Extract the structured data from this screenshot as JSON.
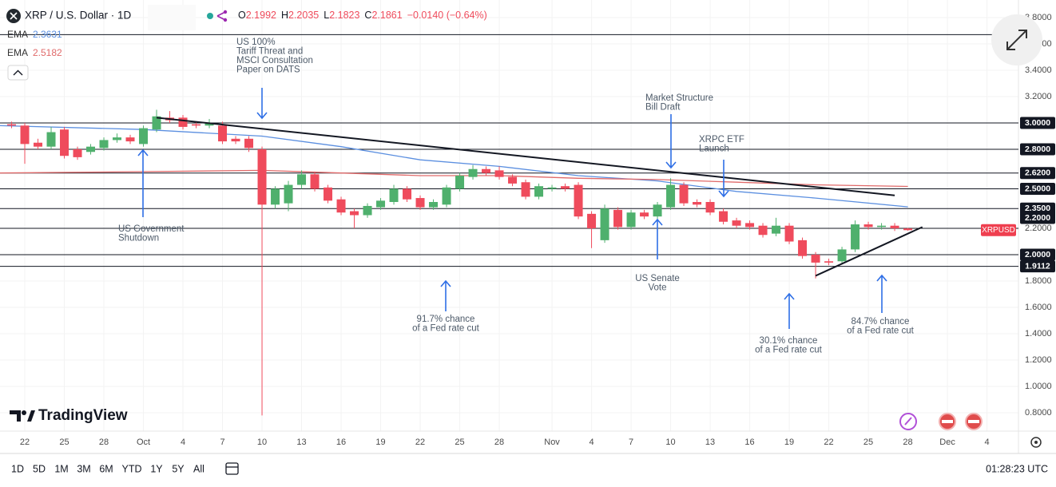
{
  "chart_data": {
    "type": "candlestick",
    "title": "XRP / U.S. Dollar · 1D",
    "ohlc_labels": [
      {
        "key": "O",
        "text": "2.1992"
      },
      {
        "key": "H",
        "text": "2.2035"
      },
      {
        "key": "L",
        "text": "2.1823"
      },
      {
        "key": "C",
        "text": "2.1861"
      }
    ],
    "change": "−0.0140 (−0.64%)",
    "x": [
      -1,
      0,
      1,
      2,
      3,
      4,
      5,
      6,
      7,
      8,
      9,
      10,
      11,
      12,
      13,
      14,
      15,
      16,
      17,
      18,
      19,
      20,
      21,
      22,
      23,
      24,
      25,
      26,
      27,
      28,
      29,
      30,
      31,
      32,
      33,
      34,
      35,
      36,
      37,
      38,
      39,
      40,
      41,
      42,
      43,
      44,
      45,
      46,
      47,
      48,
      49,
      50,
      51,
      52,
      53,
      54,
      55,
      56,
      57,
      58,
      59,
      60,
      61,
      62,
      63,
      64,
      65,
      66,
      67
    ],
    "open": [
      2.99,
      2.98,
      2.85,
      2.82,
      2.95,
      2.8,
      2.78,
      2.81,
      2.87,
      2.89,
      2.84,
      2.95,
      3.04,
      3.04,
      2.99,
      2.98,
      2.98,
      2.88,
      2.88,
      2.8,
      2.38,
      2.39,
      2.53,
      2.61,
      2.51,
      2.42,
      2.33,
      2.3,
      2.36,
      2.4,
      2.5,
      2.43,
      2.36,
      2.38,
      2.5,
      2.59,
      2.65,
      2.64,
      2.59,
      2.55,
      2.44,
      2.5,
      2.52,
      2.53,
      2.31,
      2.11,
      2.34,
      2.21,
      2.32,
      2.29,
      2.36,
      2.53,
      2.4,
      2.4,
      2.33,
      2.26,
      2.24,
      2.22,
      2.16,
      2.22,
      2.11,
      2.0,
      1.95,
      1.95,
      2.04,
      2.23,
      2.21,
      2.22,
      2.1992
    ],
    "high": [
      3.01,
      3.0,
      2.88,
      2.97,
      2.97,
      2.82,
      2.84,
      2.89,
      2.92,
      2.91,
      2.98,
      3.1,
      3.09,
      3.06,
      3.01,
      3.03,
      3.01,
      2.9,
      2.9,
      2.82,
      2.52,
      2.56,
      2.64,
      2.63,
      2.53,
      2.44,
      2.35,
      2.39,
      2.43,
      2.53,
      2.52,
      2.45,
      2.42,
      2.53,
      2.62,
      2.68,
      2.67,
      2.67,
      2.61,
      2.57,
      2.54,
      2.53,
      2.54,
      2.55,
      2.33,
      2.38,
      2.36,
      2.34,
      2.34,
      2.4,
      2.58,
      2.55,
      2.42,
      2.42,
      2.35,
      2.28,
      2.26,
      2.24,
      2.28,
      2.24,
      2.13,
      2.02,
      1.97,
      2.06,
      2.26,
      2.25,
      2.24,
      2.24,
      2.2035
    ],
    "low": [
      2.96,
      2.69,
      2.8,
      2.8,
      2.73,
      2.72,
      2.76,
      2.79,
      2.85,
      2.84,
      2.82,
      2.93,
      3.0,
      2.95,
      2.96,
      2.96,
      2.84,
      2.84,
      2.78,
      0.78,
      2.35,
      2.33,
      2.5,
      2.48,
      2.39,
      2.3,
      2.2,
      2.28,
      2.34,
      2.38,
      2.4,
      2.34,
      2.34,
      2.36,
      2.48,
      2.57,
      2.6,
      2.57,
      2.52,
      2.42,
      2.42,
      2.48,
      2.48,
      2.27,
      2.05,
      2.09,
      2.19,
      2.19,
      2.27,
      2.27,
      2.34,
      2.37,
      2.36,
      2.3,
      2.23,
      2.2,
      2.19,
      2.13,
      2.14,
      2.08,
      1.97,
      1.82,
      1.92,
      1.93,
      2.02,
      2.19,
      2.19,
      2.18,
      2.1823
    ],
    "close": [
      2.98,
      2.84,
      2.82,
      2.93,
      2.75,
      2.74,
      2.82,
      2.87,
      2.89,
      2.86,
      2.96,
      3.05,
      3.02,
      2.97,
      2.98,
      3.0,
      2.86,
      2.86,
      2.81,
      2.38,
      2.5,
      2.53,
      2.61,
      2.5,
      2.41,
      2.32,
      2.3,
      2.37,
      2.41,
      2.5,
      2.42,
      2.36,
      2.4,
      2.51,
      2.6,
      2.65,
      2.62,
      2.59,
      2.54,
      2.44,
      2.52,
      2.51,
      2.5,
      2.29,
      2.2,
      2.35,
      2.21,
      2.32,
      2.29,
      2.38,
      2.53,
      2.39,
      2.38,
      2.32,
      2.25,
      2.22,
      2.21,
      2.15,
      2.22,
      2.1,
      1.99,
      1.94,
      1.94,
      2.04,
      2.23,
      2.21,
      2.22,
      2.2,
      2.1861
    ],
    "up_color": "#4fb06d",
    "down_color": "#ef4b5c",
    "series": [
      {
        "name": "EMA",
        "value_label": "2.3631",
        "color": "#5b8fe0",
        "x": [
          -2,
          9,
          18,
          24,
          30,
          36,
          42,
          48,
          54,
          60,
          67
        ],
        "values": [
          2.98,
          2.95,
          2.9,
          2.82,
          2.72,
          2.67,
          2.6,
          2.56,
          2.48,
          2.43,
          2.3631
        ]
      },
      {
        "name": "EMA",
        "value_label": "2.5182",
        "color": "#e06a6a",
        "x": [
          -2,
          9,
          18,
          24,
          30,
          36,
          42,
          48,
          54,
          60,
          67
        ],
        "values": [
          2.62,
          2.63,
          2.64,
          2.62,
          2.6,
          2.6,
          2.58,
          2.57,
          2.55,
          2.53,
          2.5182
        ]
      }
    ],
    "trendlines": [
      {
        "x": [
          10,
          66
        ],
        "values": [
          3.04,
          2.45
        ]
      },
      {
        "x": [
          60,
          68.1
        ],
        "values": [
          1.84,
          2.21
        ]
      }
    ],
    "levels": [
      3.67,
      3.0,
      2.8,
      2.62,
      2.5,
      2.35,
      2.2,
      2.0,
      1.9112
    ],
    "level_labels": [
      null,
      "3.0000",
      "2.8000",
      "2.6200",
      "2.5000",
      "2.3500",
      "2.2000",
      "2.0000",
      "1.9112"
    ],
    "symbol_tag": "XRPUSD",
    "annotations": [
      [
        "US 100%",
        "Tariff Threat and",
        "MSCI Consultation",
        "Paper on DATS"
      ],
      [
        "Market Structure",
        "Bill Draft"
      ],
      [
        "XRPC ETF",
        "Launch"
      ],
      [
        "US Government",
        "Shutdown"
      ],
      [
        "US Senate",
        "Vote"
      ],
      [
        "91.7% chance",
        "of a Fed rate cut"
      ],
      [
        "30.1% chance",
        "of a Fed rate cut"
      ],
      [
        "84.7% chance",
        "of a Fed rate cut"
      ]
    ],
    "xlim": [
      -1.88,
      75.39
    ],
    "xticks": [
      {
        "value": 0,
        "label": "22"
      },
      {
        "value": 3,
        "label": "25"
      },
      {
        "value": 6,
        "label": "28"
      },
      {
        "value": 9,
        "label": "Oct"
      },
      {
        "value": 12,
        "label": "4"
      },
      {
        "value": 15,
        "label": "7"
      },
      {
        "value": 18,
        "label": "10"
      },
      {
        "value": 21,
        "label": "13"
      },
      {
        "value": 24,
        "label": "16"
      },
      {
        "value": 27,
        "label": "19"
      },
      {
        "value": 30,
        "label": "22"
      },
      {
        "value": 33,
        "label": "25"
      },
      {
        "value": 36,
        "label": "28"
      },
      {
        "value": 40,
        "label": "Nov"
      },
      {
        "value": 43,
        "label": "4"
      },
      {
        "value": 46,
        "label": "7"
      },
      {
        "value": 49,
        "label": "10"
      },
      {
        "value": 52,
        "label": "13"
      },
      {
        "value": 55,
        "label": "16"
      },
      {
        "value": 58,
        "label": "19"
      },
      {
        "value": 61,
        "label": "22"
      },
      {
        "value": 64,
        "label": "25"
      },
      {
        "value": 67,
        "label": "28"
      },
      {
        "value": 70,
        "label": "Dec"
      },
      {
        "value": 73,
        "label": "4"
      }
    ],
    "ylim": [
      0.661,
      3.933
    ],
    "yticks": [
      {
        "value": 0.8,
        "label": "0.8000"
      },
      {
        "value": 1.0,
        "label": "1.0000"
      },
      {
        "value": 1.2,
        "label": "1.2000"
      },
      {
        "value": 1.4,
        "label": "1.4000"
      },
      {
        "value": 1.6,
        "label": "1.6000"
      },
      {
        "value": 1.8,
        "label": "1.8000"
      },
      {
        "value": 2.2,
        "label": "2.2000"
      },
      {
        "value": 3.2,
        "label": "3.2000"
      },
      {
        "value": 3.4,
        "label": "3.4000"
      },
      {
        "value": 3.6,
        "label": "3.6000"
      },
      {
        "value": 3.8,
        "label": "3.8000"
      }
    ],
    "grid": true
  },
  "watermark": "TradingView",
  "toolbar": {
    "ranges": [
      "1D",
      "5D",
      "1M",
      "3M",
      "6M",
      "YTD",
      "1Y",
      "5Y",
      "All"
    ],
    "clock": "01:28:23 UTC"
  }
}
